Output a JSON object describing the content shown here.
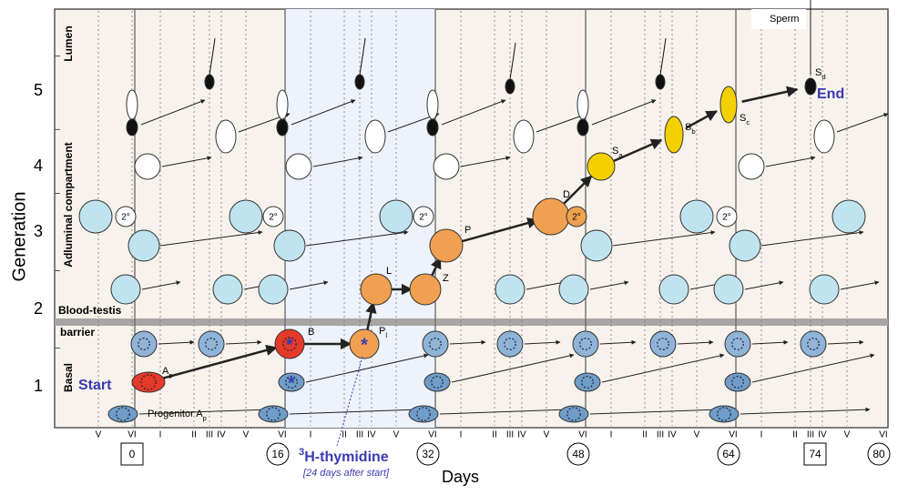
{
  "axis": {
    "title": "Generation",
    "levels": [
      1,
      2,
      3,
      4,
      5
    ]
  },
  "compartments": {
    "lumen": "Lumen",
    "adluminal": "Adluminal compartment",
    "barrier_top": "Blood-testis",
    "barrier_bottom": "barrier",
    "basal": "Basal"
  },
  "cells": {
    "start": "Start",
    "ap": {
      "main": "A",
      "sub": "p"
    },
    "progenitor": {
      "main": "Progenitor A",
      "sub": "p"
    },
    "b": {
      "main": "B"
    },
    "pl": {
      "main": "P",
      "sub": "l"
    },
    "l": {
      "main": "L"
    },
    "z": {
      "main": "Z"
    },
    "p": {
      "main": "P"
    },
    "d": {
      "main": "D"
    },
    "sa": {
      "main": "S",
      "sub": "a"
    },
    "sb": {
      "main": "S",
      "sub": "b"
    },
    "sc": {
      "main": "S",
      "sub": "c"
    },
    "sd": {
      "main": "S",
      "sub": "d"
    },
    "end": "End",
    "sperm": "Sperm",
    "secondary": [
      "2°",
      "2°",
      "2°",
      "2°",
      "2°"
    ]
  },
  "stages": [
    "V",
    "VI",
    "I",
    "II",
    "III",
    "IV",
    "V",
    "VI",
    "I",
    "II",
    "III",
    "IV",
    "V",
    "VI",
    "I",
    "II",
    "III",
    "IV",
    "V",
    "VI",
    "I",
    "II",
    "III",
    "IV",
    "V",
    "VI",
    "I",
    "II",
    "III",
    "IV",
    "V",
    "VI"
  ],
  "days": {
    "title": "Days",
    "labels": [
      "0",
      "16",
      "32",
      "48",
      "64",
      "74",
      "80"
    ]
  },
  "thymidine": {
    "label": {
      "sup": "3",
      "main": "H-thymidine"
    },
    "note": "[24 days after start]"
  }
}
